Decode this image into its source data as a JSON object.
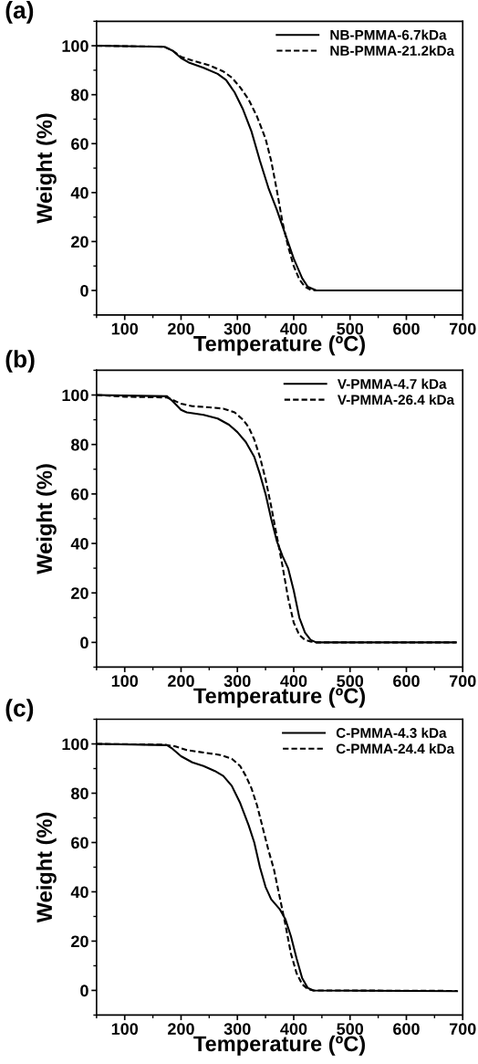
{
  "chart_data": [
    {
      "type": "line",
      "title": "(a)",
      "xlabel": "Temperature (ºC)",
      "ylabel": "Weight (%)",
      "xlim": [
        50,
        700
      ],
      "ylim": [
        -10,
        110
      ],
      "xticks": [
        100,
        200,
        300,
        400,
        500,
        600,
        700
      ],
      "yticks": [
        0,
        20,
        40,
        60,
        80,
        100
      ],
      "legend": "top right",
      "grid": false,
      "series": [
        {
          "name": "NB-PMMA-6.7kDa",
          "color": "#000000",
          "line_style": "solid",
          "x": [
            50,
            170,
            185,
            200,
            215,
            240,
            265,
            280,
            295,
            310,
            325,
            340,
            355,
            370,
            385,
            400,
            415,
            425,
            440,
            700
          ],
          "values": [
            100,
            99.6,
            98,
            95,
            93,
            91,
            88.5,
            86,
            81,
            74,
            65,
            53,
            42,
            33,
            23,
            13,
            5,
            1.5,
            0,
            0
          ]
        },
        {
          "name": "NB-PMMA-21.2kDa",
          "color": "#000000",
          "line_style": "dashed",
          "x": [
            50,
            170,
            185,
            200,
            220,
            250,
            275,
            290,
            305,
            320,
            335,
            350,
            360,
            370,
            380,
            390,
            400,
            410,
            420,
            430,
            440,
            700
          ],
          "values": [
            100,
            99.6,
            98,
            95.5,
            94,
            92,
            89.5,
            87,
            83,
            78,
            71,
            62,
            53,
            41,
            28,
            18,
            10,
            4.5,
            1.5,
            0.3,
            0,
            0
          ]
        }
      ]
    },
    {
      "type": "line",
      "title": "(b)",
      "xlabel": "Temperature (ºC)",
      "ylabel": "Weight (%)",
      "xlim": [
        50,
        700
      ],
      "ylim": [
        -10,
        110
      ],
      "xticks": [
        100,
        200,
        300,
        400,
        500,
        600,
        700
      ],
      "yticks": [
        0,
        20,
        40,
        60,
        80,
        100
      ],
      "legend": "top right",
      "grid": false,
      "series": [
        {
          "name": "V-PMMA-4.7 kDa",
          "color": "#000000",
          "line_style": "solid",
          "x": [
            50,
            175,
            185,
            200,
            210,
            240,
            265,
            285,
            300,
            315,
            330,
            340,
            350,
            360,
            370,
            380,
            390,
            400,
            410,
            420,
            430,
            440,
            688
          ],
          "values": [
            100,
            99.5,
            97.5,
            94,
            93,
            92,
            90.5,
            88,
            85,
            81,
            75,
            68,
            60,
            50,
            41,
            35,
            30,
            21,
            10,
            4,
            1,
            0,
            0
          ]
        },
        {
          "name": "V-PMMA-26.4 kDa",
          "color": "#000000",
          "line_style": "dashed",
          "x": [
            50,
            100,
            175,
            185,
            200,
            220,
            250,
            275,
            295,
            310,
            320,
            330,
            340,
            350,
            360,
            370,
            380,
            390,
            400,
            410,
            420,
            430,
            440,
            688
          ],
          "values": [
            100,
            99.3,
            99,
            98,
            96.5,
            95.5,
            95,
            94.5,
            93,
            90,
            87,
            82,
            75,
            66,
            55,
            43,
            31,
            18,
            8,
            3,
            1,
            0.3,
            0,
            0
          ]
        }
      ]
    },
    {
      "type": "line",
      "title": "(c)",
      "xlabel": "Temperature (ºC)",
      "ylabel": "Weight (%)",
      "xlim": [
        50,
        700
      ],
      "ylim": [
        -10,
        110
      ],
      "xticks": [
        100,
        200,
        300,
        400,
        500,
        600,
        700
      ],
      "yticks": [
        0,
        20,
        40,
        60,
        80,
        100
      ],
      "legend": "top right",
      "grid": false,
      "series": [
        {
          "name": "C-PMMA-4.3 kDa",
          "color": "#000000",
          "line_style": "solid",
          "x": [
            50,
            175,
            185,
            200,
            220,
            240,
            260,
            275,
            290,
            305,
            320,
            330,
            340,
            350,
            360,
            375,
            385,
            395,
            405,
            415,
            425,
            435,
            690
          ],
          "values": [
            100,
            99.5,
            98,
            95,
            92.5,
            91,
            89,
            87,
            83,
            76,
            67,
            60,
            50,
            42,
            37,
            33,
            29,
            22,
            13,
            5,
            1,
            0,
            -0.3
          ]
        },
        {
          "name": "C-PMMA-24.4 kDa",
          "color": "#000000",
          "line_style": "dashed",
          "x": [
            50,
            170,
            190,
            210,
            240,
            270,
            290,
            305,
            315,
            325,
            335,
            345,
            355,
            365,
            375,
            385,
            395,
            405,
            415,
            425,
            435,
            690
          ],
          "values": [
            100,
            99.7,
            99,
            97.5,
            96.5,
            95.5,
            94,
            91,
            87,
            82,
            75,
            66,
            57,
            49,
            38,
            27,
            15,
            7,
            2.5,
            0.5,
            0,
            -0.2
          ]
        }
      ]
    }
  ]
}
